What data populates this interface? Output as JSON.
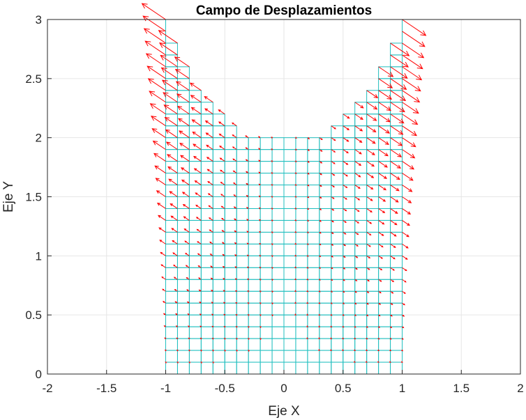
{
  "chart_data": {
    "type": "quiver",
    "title": "Campo de Desplazamientos",
    "xlabel": "Eje X",
    "ylabel": "Eje Y",
    "xlim": [
      -2,
      2
    ],
    "ylim": [
      0,
      3
    ],
    "xticks": [
      "-2",
      "-1.5",
      "-1",
      "-0.5",
      "0",
      "0.5",
      "1",
      "1.5",
      "2"
    ],
    "yticks": [
      "0",
      "0.5",
      "1",
      "1.5",
      "2",
      "2.5",
      "3"
    ],
    "grid": true,
    "mesh": {
      "element_size": 0.1,
      "rows": [
        {
          "y": [
            0.0,
            2.0
          ],
          "x": [
            -1.0,
            1.0
          ]
        },
        {
          "y": [
            2.0,
            2.1
          ],
          "x": [
            -1.0,
            -0.4
          ]
        },
        {
          "y": [
            2.0,
            2.1
          ],
          "x": [
            0.4,
            1.0
          ]
        },
        {
          "y": [
            2.1,
            2.2
          ],
          "x": [
            -1.0,
            -0.5
          ]
        },
        {
          "y": [
            2.1,
            2.2
          ],
          "x": [
            0.5,
            1.0
          ]
        },
        {
          "y": [
            2.2,
            2.3
          ],
          "x": [
            -1.0,
            -0.6
          ]
        },
        {
          "y": [
            2.2,
            2.3
          ],
          "x": [
            0.6,
            1.0
          ]
        },
        {
          "y": [
            2.3,
            2.4
          ],
          "x": [
            -1.0,
            -0.7
          ]
        },
        {
          "y": [
            2.3,
            2.4
          ],
          "x": [
            0.7,
            1.0
          ]
        },
        {
          "y": [
            2.4,
            2.5
          ],
          "x": [
            -1.0,
            -0.8
          ]
        },
        {
          "y": [
            2.4,
            2.5
          ],
          "x": [
            0.8,
            1.0
          ]
        },
        {
          "y": [
            2.5,
            2.6
          ],
          "x": [
            -1.0,
            -0.8
          ]
        },
        {
          "y": [
            2.5,
            2.6
          ],
          "x": [
            0.8,
            1.0
          ]
        },
        {
          "y": [
            2.6,
            2.7
          ],
          "x": [
            -1.0,
            -0.9
          ]
        },
        {
          "y": [
            2.6,
            2.7
          ],
          "x": [
            0.9,
            1.0
          ]
        },
        {
          "y": [
            2.7,
            2.8
          ],
          "x": [
            -1.0,
            -0.9
          ]
        },
        {
          "y": [
            2.7,
            2.8
          ],
          "x": [
            0.9,
            1.0
          ]
        },
        {
          "y": [
            2.8,
            3.0
          ],
          "x": [
            -1.0,
            -1.0
          ]
        },
        {
          "y": [
            2.8,
            3.0
          ],
          "x": [
            1.0,
            1.0
          ]
        }
      ]
    },
    "displacement_field": {
      "description_values": "u grows with |x| and y; points outward",
      "ux_max": 0.2,
      "uy_max": 0.15
    },
    "colors": {
      "mesh": "#22bfbf",
      "arrows": "#ff0000",
      "grid": "#e6e6e6",
      "axes": "#262626"
    }
  }
}
